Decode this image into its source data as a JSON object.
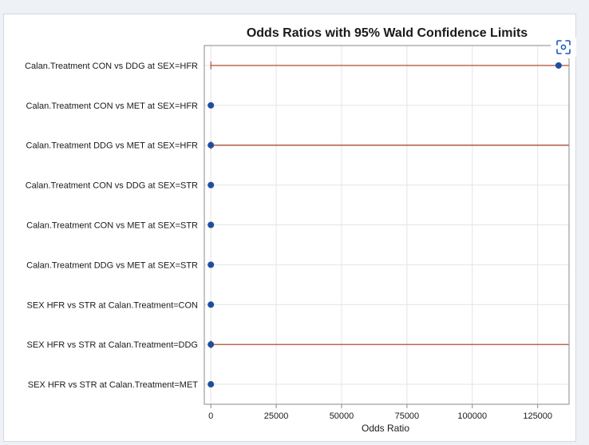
{
  "chart_data": {
    "type": "scatter",
    "title": "Odds Ratios with 95% Wald Confidence Limits",
    "xlabel": "Odds Ratio",
    "ylabel": "",
    "xlim": [
      -2500,
      137000
    ],
    "xticks": [
      0,
      25000,
      50000,
      75000,
      100000,
      125000
    ],
    "xtick_labels": [
      "0",
      "25000",
      "50000",
      "75000",
      "100000",
      "125000"
    ],
    "grid": true,
    "categories": [
      "Calan.Treatment CON vs DDG at SEX=HFR",
      "Calan.Treatment CON vs MET at SEX=HFR",
      "Calan.Treatment DDG vs MET at SEX=HFR",
      "Calan.Treatment CON vs DDG at SEX=STR",
      "Calan.Treatment CON vs MET at SEX=STR",
      "Calan.Treatment DDG vs MET at SEX=STR",
      "SEX HFR vs STR at Calan.Treatment=CON",
      "SEX HFR vs STR at Calan.Treatment=DDG",
      "SEX HFR vs STR at Calan.Treatment=MET"
    ],
    "estimates": [
      133000,
      0.5,
      0.3,
      0.8,
      0.6,
      0.4,
      0.7,
      0.5,
      0.9
    ],
    "lower_limits": [
      0.2,
      null,
      0.001,
      null,
      null,
      null,
      null,
      0.001,
      null
    ],
    "upper_limits": [
      137000,
      null,
      137000,
      null,
      null,
      null,
      null,
      137000,
      null
    ],
    "colors": {
      "marker": "#1f4e9e",
      "ci_line": "#a33a1f",
      "grid": "#e4e4e4",
      "frame": "#8a8a8a",
      "text": "#1a1a1a"
    }
  },
  "toolbar": {
    "scan_icon": "scan-focus-icon"
  }
}
